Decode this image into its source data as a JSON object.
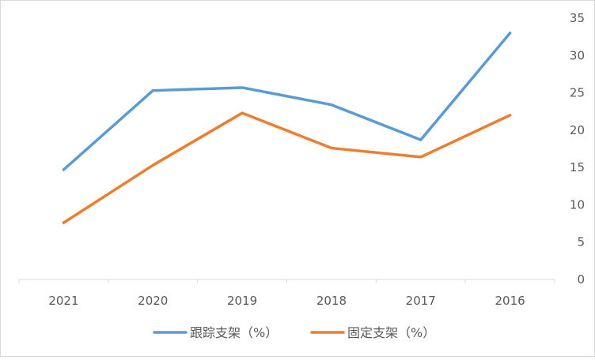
{
  "chart_data": {
    "type": "line",
    "categories": [
      "2021",
      "2020",
      "2019",
      "2018",
      "2017",
      "2016"
    ],
    "series": [
      {
        "name": "跟踪支架（%）",
        "color": "#5b9bd5",
        "values": [
          14.7,
          25.3,
          25.7,
          23.4,
          18.7,
          33.0
        ]
      },
      {
        "name": "固定支架（%）",
        "color": "#ed7d31",
        "values": [
          7.6,
          15.3,
          22.3,
          17.6,
          16.4,
          22.0
        ]
      }
    ],
    "y_ticks": [
      "0",
      "5",
      "10",
      "15",
      "20",
      "25",
      "30",
      "35"
    ],
    "ylim": [
      0,
      35
    ],
    "y_axis_side": "right",
    "grid": false,
    "legend_position": "bottom"
  }
}
